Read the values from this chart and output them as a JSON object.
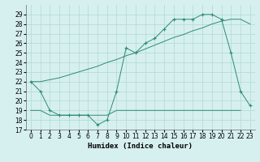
{
  "xlabel": "Humidex (Indice chaleur)",
  "color": "#2E8B74",
  "bg_color": "#d6f0ef",
  "grid_color": "#b0d8d5",
  "ylim": [
    17,
    30
  ],
  "xlim": [
    -0.5,
    23.5
  ],
  "yticks": [
    17,
    18,
    19,
    20,
    21,
    22,
    23,
    24,
    25,
    26,
    27,
    28,
    29
  ],
  "xticks": [
    0,
    1,
    2,
    3,
    4,
    5,
    6,
    7,
    8,
    9,
    10,
    11,
    12,
    13,
    14,
    15,
    16,
    17,
    18,
    19,
    20,
    21,
    22,
    23
  ],
  "tick_fontsize": 5.5,
  "xlabel_fontsize": 6.5,
  "line_jagged_x": [
    0,
    1,
    2,
    3,
    4,
    5,
    6,
    7,
    8,
    9,
    10,
    11,
    12,
    13,
    14,
    15,
    16,
    17,
    18,
    19,
    20,
    21,
    22,
    23
  ],
  "line_jagged_y": [
    22,
    21,
    19,
    18.5,
    18.5,
    18.5,
    18.5,
    17.5,
    18,
    21,
    25.5,
    25,
    26,
    26.5,
    27.5,
    28.5,
    28.5,
    28.5,
    29,
    29,
    28.5,
    25,
    21,
    19.5
  ],
  "line_flat_x": [
    0,
    1,
    2,
    3,
    4,
    5,
    6,
    7,
    8,
    9,
    10,
    11,
    12,
    13,
    14,
    15,
    16,
    17,
    18,
    19,
    20,
    21,
    22
  ],
  "line_flat_y": [
    19,
    19,
    18.5,
    18.5,
    18.5,
    18.5,
    18.5,
    18.5,
    18.5,
    19,
    19,
    19,
    19,
    19,
    19,
    19,
    19,
    19,
    19,
    19,
    19,
    19,
    19
  ],
  "line_diag_x": [
    0,
    1,
    2,
    3,
    4,
    5,
    6,
    7,
    8,
    9,
    10,
    11,
    12,
    13,
    14,
    15,
    16,
    17,
    18,
    19,
    20,
    21,
    22,
    23
  ],
  "line_diag_y": [
    22,
    22,
    22.2,
    22.4,
    22.7,
    23.0,
    23.3,
    23.6,
    24.0,
    24.3,
    24.7,
    25.0,
    25.4,
    25.8,
    26.2,
    26.6,
    26.9,
    27.3,
    27.6,
    28.0,
    28.3,
    28.5,
    28.5,
    28.0
  ]
}
